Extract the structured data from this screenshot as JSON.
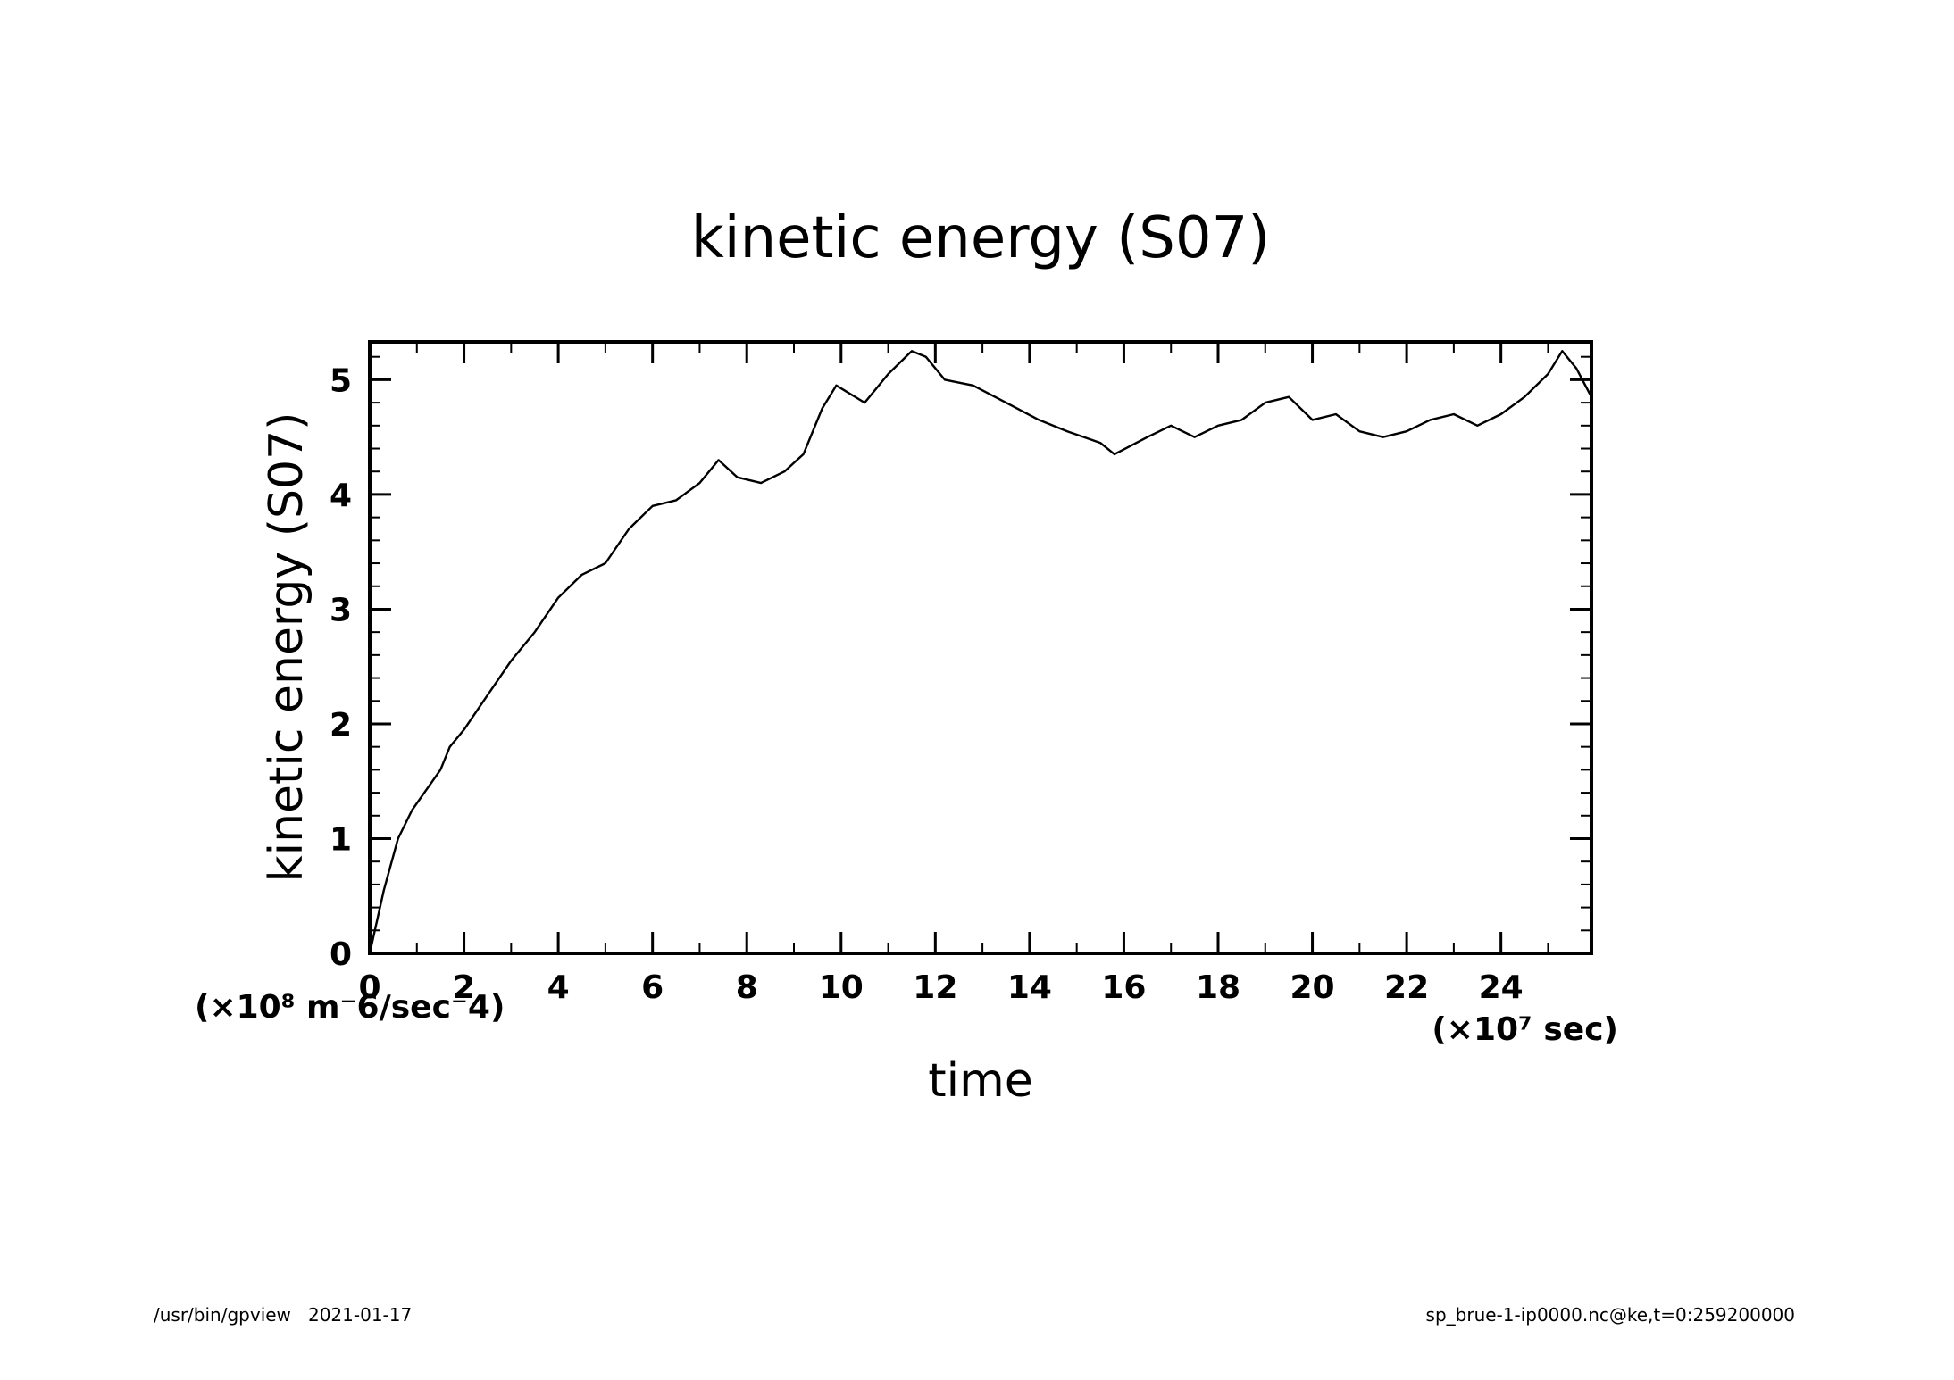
{
  "footer": {
    "left": "/usr/bin/gpview   2021-01-17",
    "right": "sp_brue-1-ip0000.nc@ke,t=0:259200000"
  },
  "chart_data": {
    "type": "line",
    "title": "kinetic energy (S07)",
    "xlabel": "time",
    "ylabel": "kinetic energy (S07)",
    "x_unit_label": "(×10⁷ sec)",
    "y_unit_label": "(×10⁸ m⁻6/sec⁻4)",
    "xlim": [
      0,
      25.92
    ],
    "ylim": [
      0,
      5.33
    ],
    "x_ticks": [
      0,
      2,
      4,
      6,
      8,
      10,
      12,
      14,
      16,
      18,
      20,
      22,
      24
    ],
    "y_ticks": [
      0,
      1,
      2,
      3,
      4,
      5
    ],
    "grid": false,
    "line_color": "#000000",
    "series": [
      {
        "x": [
          0,
          0.3,
          0.6,
          0.9,
          1.5,
          1.7,
          2.0,
          2.5,
          3.0,
          3.5,
          4.0,
          4.5,
          5.0,
          5.5,
          6.0,
          6.5,
          7.0,
          7.4,
          7.8,
          8.3,
          8.8,
          9.2,
          9.6,
          9.9,
          10.5,
          11.0,
          11.5,
          11.8,
          12.2,
          12.8,
          13.5,
          14.2,
          14.8,
          15.5,
          15.8,
          16.5,
          17.0,
          17.5,
          18.0,
          18.5,
          19.0,
          19.5,
          20.0,
          20.5,
          21.0,
          21.5,
          22.0,
          22.5,
          23.0,
          23.5,
          24.0,
          24.5,
          25.0,
          25.3,
          25.6,
          25.92
        ],
        "y": [
          0,
          0.55,
          1.0,
          1.25,
          1.6,
          1.8,
          1.95,
          2.25,
          2.55,
          2.8,
          3.1,
          3.3,
          3.4,
          3.7,
          3.9,
          3.95,
          4.1,
          4.3,
          4.15,
          4.1,
          4.2,
          4.35,
          4.75,
          4.95,
          4.8,
          5.05,
          5.25,
          5.2,
          5.0,
          4.95,
          4.8,
          4.65,
          4.55,
          4.45,
          4.35,
          4.5,
          4.6,
          4.5,
          4.6,
          4.65,
          4.8,
          4.85,
          4.65,
          4.7,
          4.55,
          4.5,
          4.55,
          4.65,
          4.7,
          4.6,
          4.7,
          4.85,
          5.05,
          5.25,
          5.1,
          4.85
        ]
      }
    ]
  }
}
